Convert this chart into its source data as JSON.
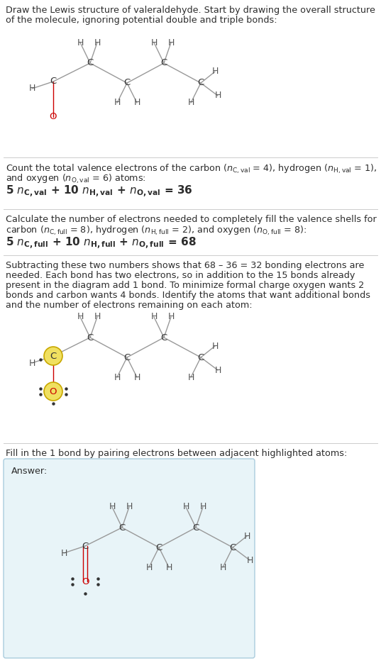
{
  "bg_color": "#ffffff",
  "answer_bg": "#e8f4f8",
  "text_color": "#2d2d2d",
  "bond_color": "#999999",
  "O_color": "#cc0000",
  "highlight_yellow": "#f0e060",
  "highlight_border": "#c8a800",
  "atom_color": "#333333",
  "H_color": "#555555",
  "separator_color": "#cccccc",
  "dot_color": "#333333",
  "section1_lines": [
    "Draw the Lewis structure of valeraldehyde. Start by drawing the overall structure",
    "of the molecule, ignoring potential double and triple bonds:"
  ],
  "section2_line1": "Count the total valence electrons of the carbon (",
  "section2_line1b": " = 4), hydrogen (",
  "section2_line1c": " = 1),",
  "section2_line2a": "and oxygen (",
  "section2_line2b": " = 6) atoms:",
  "section2_line3": "5 ",
  "section3_line1": "Calculate the number of electrons needed to completely fill the valence shells for",
  "section3_line2a": "carbon (",
  "section3_line2b": " = 8), hydrogen (",
  "section3_line2c": " = 2), and oxygen (",
  "section3_line2d": " = 8):",
  "section3_line3": "5 ",
  "section4_lines": [
    "Subtracting these two numbers shows that 68 – 36 = 32 bonding electrons are",
    "needed. Each bond has two electrons, so in addition to the 15 bonds already",
    "present in the diagram add 1 bond. To minimize formal charge oxygen wants 2",
    "bonds and carbon wants 4 bonds. Identify the atoms that want additional bonds",
    "and the number of electrons remaining on each atom:"
  ],
  "section5_line": "Fill in the 1 bond by pairing electrons between adjacent highlighted atoms:",
  "answer_label": "Answer:"
}
